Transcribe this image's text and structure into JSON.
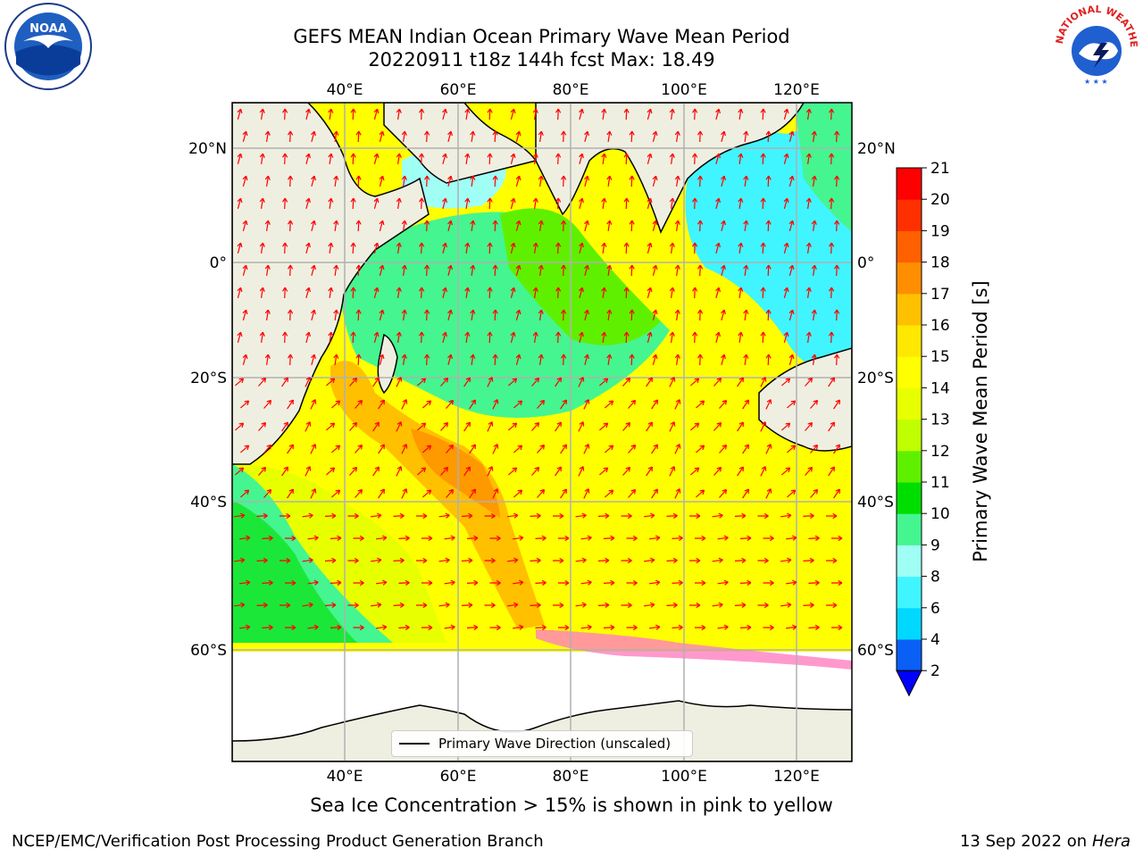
{
  "header": {
    "title_line1": "GEFS MEAN Indian Ocean Primary Wave Mean Period",
    "title_line2": "20220911 t18z 144h fcst   Max: 18.49"
  },
  "logos": {
    "left": {
      "name": "noaa-logo",
      "text": "NOAA"
    },
    "right": {
      "name": "nws-logo",
      "text": "NATIONAL WEATHER SERVICE"
    }
  },
  "map": {
    "lon_ticks": [
      "40°E",
      "60°E",
      "80°E",
      "100°E",
      "120°E"
    ],
    "lon_values": [
      40,
      60,
      80,
      100,
      120
    ],
    "lat_ticks": [
      "20°N",
      "0°",
      "20°S",
      "40°S",
      "60°S"
    ],
    "lat_values": [
      20,
      0,
      -20,
      -40,
      -60
    ],
    "colors": {
      "land": "#efefe1",
      "ice_free_white": "#ffffff",
      "grid": "#b0b0b0",
      "arrow": "#ff0000"
    },
    "legend_label": "Primary Wave Direction (unscaled)"
  },
  "colorbar": {
    "label": "Primary Wave Mean Period [s]",
    "ticks": [
      "2",
      "4",
      "6",
      "8",
      "9",
      "10",
      "11",
      "12",
      "13",
      "14",
      "15",
      "16",
      "17",
      "18",
      "19",
      "20",
      "21"
    ],
    "colors": [
      "#0a5ff5",
      "#00d8ff",
      "#40f5ff",
      "#9ffff5",
      "#45f590",
      "#00de00",
      "#5ff000",
      "#c0ff00",
      "#e8ff00",
      "#ffff00",
      "#ffe800",
      "#ffc000",
      "#ff8e00",
      "#ff6000",
      "#ff3000",
      "#ff0000"
    ],
    "extend_color": "#0000ff"
  },
  "notes": {
    "ice_note": "Sea Ice Concentration > 15% is shown in pink to yellow"
  },
  "footer": {
    "left": "NCEP/EMC/Verification Post Processing Product Generation Branch",
    "right_date": "13 Sep 2022 on",
    "right_host": "Hera"
  }
}
